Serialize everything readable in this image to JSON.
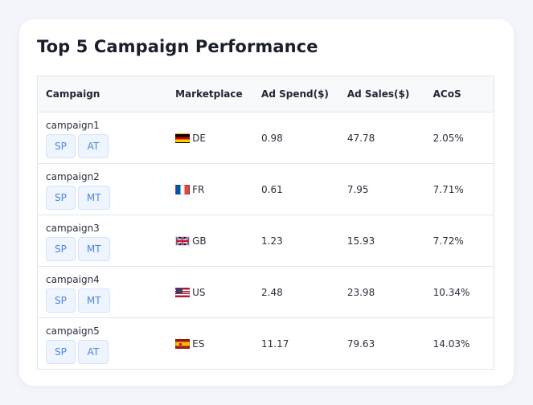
{
  "card": {
    "title": "Top 5 Campaign Performance"
  },
  "table": {
    "headers": {
      "campaign": "Campaign",
      "marketplace": "Marketplace",
      "ad_spend": "Ad Spend($)",
      "ad_sales": "Ad Sales($)",
      "acos": "ACoS"
    },
    "rows": [
      {
        "campaign": "campaign1",
        "tags": [
          "SP",
          "AT"
        ],
        "flag": "de-flag-icon",
        "marketplace": "DE",
        "ad_spend": "0.98",
        "ad_sales": "47.78",
        "acos": "2.05%"
      },
      {
        "campaign": "campaign2",
        "tags": [
          "SP",
          "MT"
        ],
        "flag": "fr-flag-icon",
        "marketplace": "FR",
        "ad_spend": "0.61",
        "ad_sales": "7.95",
        "acos": "7.71%"
      },
      {
        "campaign": "campaign3",
        "tags": [
          "SP",
          "MT"
        ],
        "flag": "gb-flag-icon",
        "marketplace": "GB",
        "ad_spend": "1.23",
        "ad_sales": "15.93",
        "acos": "7.72%"
      },
      {
        "campaign": "campaign4",
        "tags": [
          "SP",
          "MT"
        ],
        "flag": "us-flag-icon",
        "marketplace": "US",
        "ad_spend": "2.48",
        "ad_sales": "23.98",
        "acos": "10.34%"
      },
      {
        "campaign": "campaign5",
        "tags": [
          "SP",
          "AT"
        ],
        "flag": "es-flag-icon",
        "marketplace": "ES",
        "ad_spend": "11.17",
        "ad_sales": "79.63",
        "acos": "14.03%"
      }
    ]
  },
  "colors": {
    "tag_text": "#4a86e0",
    "tag_bg": "#eef5ff",
    "page_bg": "#f4f5fb"
  }
}
